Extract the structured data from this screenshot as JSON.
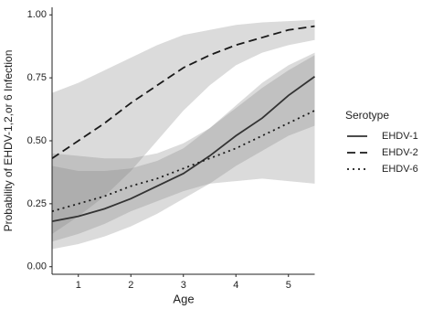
{
  "chart_data": {
    "type": "line",
    "xlabel": "Age",
    "ylabel": "Probability of EHDV-1,2,or 6 Infection",
    "legend_title": "Serotype",
    "legend": "right",
    "x": [
      0.5,
      1,
      1.5,
      2,
      2.5,
      3,
      3.5,
      4,
      4.5,
      5,
      5.5
    ],
    "xlim": [
      0.5,
      5.5
    ],
    "xticks": [
      1,
      2,
      3,
      4,
      5
    ],
    "ylim": [
      -0.03,
      1.03
    ],
    "yticks": [
      {
        "value": 0,
        "label": "0.00"
      },
      {
        "value": 0.25,
        "label": "0.25"
      },
      {
        "value": 0.5,
        "label": "0.50"
      },
      {
        "value": 0.75,
        "label": "0.75"
      },
      {
        "value": 1,
        "label": "1.00"
      }
    ],
    "band_color": "#7f7f7f",
    "series": [
      {
        "name": "EHDV-1",
        "color": "#333333",
        "dash": "solid",
        "values": [
          0.18,
          0.2,
          0.23,
          0.27,
          0.32,
          0.37,
          0.44,
          0.52,
          0.59,
          0.68,
          0.755
        ],
        "lower": [
          0.07,
          0.09,
          0.12,
          0.16,
          0.21,
          0.27,
          0.33,
          0.4,
          0.46,
          0.52,
          0.56
        ],
        "upper": [
          0.4,
          0.38,
          0.38,
          0.39,
          0.42,
          0.47,
          0.55,
          0.64,
          0.73,
          0.8,
          0.85
        ]
      },
      {
        "name": "EHDV-2",
        "color": "#1a1a1a",
        "dash": "dashed",
        "values": [
          0.43,
          0.5,
          0.57,
          0.65,
          0.72,
          0.79,
          0.84,
          0.88,
          0.91,
          0.94,
          0.955
        ],
        "lower": [
          0.13,
          0.2,
          0.28,
          0.38,
          0.5,
          0.62,
          0.72,
          0.8,
          0.85,
          0.88,
          0.9
        ],
        "upper": [
          0.69,
          0.73,
          0.78,
          0.83,
          0.88,
          0.92,
          0.94,
          0.96,
          0.97,
          0.975,
          0.98
        ]
      },
      {
        "name": "EHDV-6",
        "color": "#1a1a1a",
        "dash": "dotted",
        "values": [
          0.22,
          0.25,
          0.28,
          0.32,
          0.35,
          0.39,
          0.43,
          0.47,
          0.52,
          0.57,
          0.62
        ],
        "lower": [
          0.1,
          0.13,
          0.17,
          0.22,
          0.26,
          0.3,
          0.33,
          0.34,
          0.35,
          0.34,
          0.33
        ],
        "upper": [
          0.45,
          0.44,
          0.43,
          0.43,
          0.45,
          0.49,
          0.55,
          0.63,
          0.71,
          0.78,
          0.84
        ]
      }
    ]
  }
}
